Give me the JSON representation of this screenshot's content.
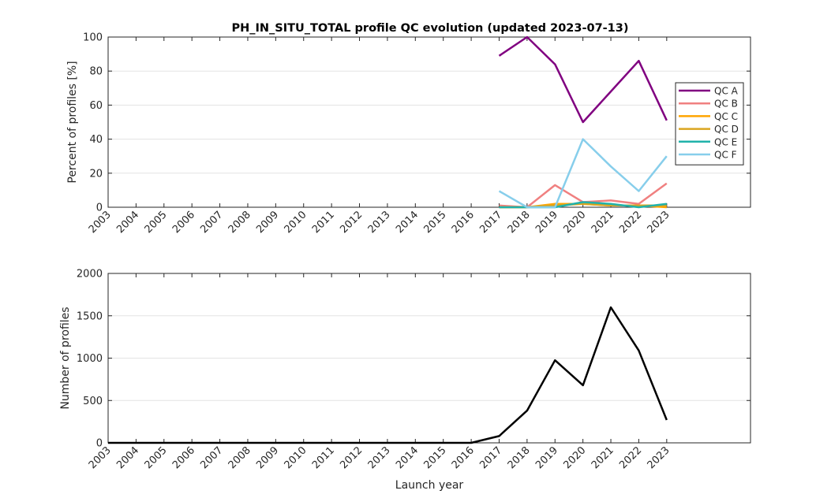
{
  "title": "PH_IN_SITU_TOTAL profile QC evolution (updated 2023-07-13)",
  "chart_data": [
    {
      "type": "line",
      "title": "PH_IN_SITU_TOTAL profile QC evolution (updated 2023-07-13)",
      "xlabel": "",
      "ylabel": "Percent of profiles [%]",
      "x": [
        "2003",
        "2004",
        "2005",
        "2006",
        "2007",
        "2008",
        "2009",
        "2010",
        "2011",
        "2012",
        "2013",
        "2014",
        "2015",
        "2016",
        "2017",
        "2018",
        "2019",
        "2020",
        "2021",
        "2022",
        "2023"
      ],
      "xlim": [
        2003,
        2026
      ],
      "ylim": [
        0,
        100
      ],
      "yticks": [
        0,
        20,
        40,
        60,
        80,
        100
      ],
      "grid": "y",
      "legend": "right",
      "series": [
        {
          "name": "QC A",
          "color": "#800080",
          "x": [
            2017,
            2018,
            2019,
            2020,
            2021,
            2022,
            2023
          ],
          "values": [
            89,
            100,
            84,
            50,
            68,
            86,
            51
          ]
        },
        {
          "name": "QC B",
          "color": "#f08080",
          "x": [
            2017,
            2018,
            2019,
            2020,
            2021,
            2022,
            2023
          ],
          "values": [
            1,
            0,
            13,
            3,
            4,
            2,
            14
          ]
        },
        {
          "name": "QC C",
          "color": "#ffa500",
          "x": [
            2017,
            2018,
            2019,
            2020,
            2021,
            2022,
            2023
          ],
          "values": [
            0,
            0,
            2,
            2,
            1,
            1,
            0
          ]
        },
        {
          "name": "QC D",
          "color": "#daa520",
          "x": [
            2017,
            2018,
            2019,
            2020,
            2021,
            2022,
            2023
          ],
          "values": [
            0,
            0,
            1,
            2,
            1,
            1,
            1
          ]
        },
        {
          "name": "QC E",
          "color": "#20b2aa",
          "x": [
            2017,
            2018,
            2019,
            2020,
            2021,
            2022,
            2023
          ],
          "values": [
            0,
            0,
            0,
            3,
            2,
            0,
            2
          ]
        },
        {
          "name": "QC F",
          "color": "#87ceeb",
          "x": [
            2017,
            2018,
            2019,
            2020,
            2021,
            2022,
            2023
          ],
          "values": [
            9.5,
            0,
            0,
            40,
            24,
            9.5,
            30
          ]
        }
      ]
    },
    {
      "type": "line",
      "title": "",
      "xlabel": "Launch year",
      "ylabel": "Number of profiles",
      "x": [
        "2003",
        "2004",
        "2005",
        "2006",
        "2007",
        "2008",
        "2009",
        "2010",
        "2011",
        "2012",
        "2013",
        "2014",
        "2015",
        "2016",
        "2017",
        "2018",
        "2019",
        "2020",
        "2021",
        "2022",
        "2023"
      ],
      "xlim": [
        2003,
        2026
      ],
      "ylim": [
        0,
        2000
      ],
      "yticks": [
        0,
        500,
        1000,
        1500,
        2000
      ],
      "grid": "y",
      "series": [
        {
          "color": "#000000",
          "x": [
            2003,
            2004,
            2005,
            2006,
            2007,
            2008,
            2009,
            2010,
            2011,
            2012,
            2013,
            2014,
            2015,
            2016,
            2017,
            2018,
            2019,
            2020,
            2021,
            2022,
            2023
          ],
          "values": [
            0,
            0,
            0,
            0,
            0,
            0,
            0,
            0,
            0,
            0,
            0,
            0,
            0,
            0,
            80,
            380,
            975,
            680,
            1600,
            1090,
            270
          ]
        }
      ]
    }
  ]
}
